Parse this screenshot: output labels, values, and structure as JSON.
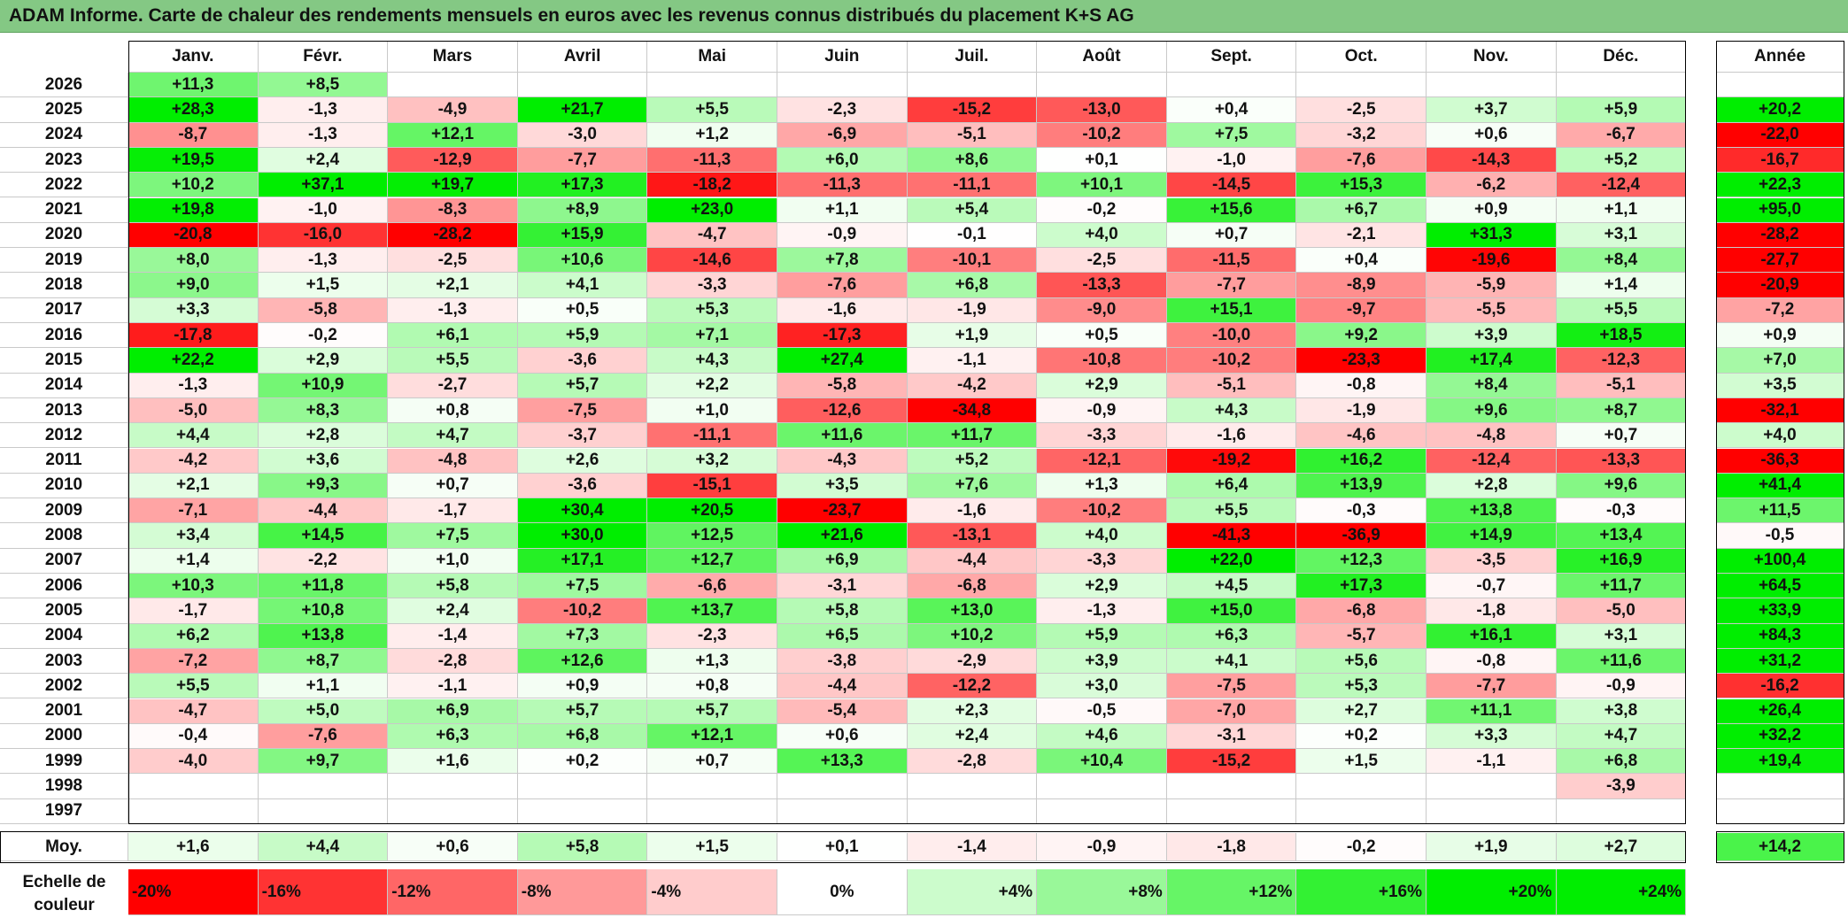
{
  "title": "ADAM Informe. Carte de chaleur des rendements mensuels en euros avec les revenus connus distribués du placement K+S AG",
  "chart_data": {
    "type": "heatmap",
    "title": "ADAM Informe. Carte de chaleur des rendements mensuels en euros avec les revenus connus distribués du placement K+S AG",
    "months": [
      "Janv.",
      "Févr.",
      "Mars",
      "Avril",
      "Mai",
      "Juin",
      "Juil.",
      "Août",
      "Sept.",
      "Oct.",
      "Nov.",
      "Déc."
    ],
    "annual_label": "Année",
    "rows": [
      {
        "year": "2026",
        "values": [
          "+11,3",
          "+8,5",
          "",
          "",
          "",
          "",
          "",
          "",
          "",
          "",
          "",
          ""
        ],
        "annual": ""
      },
      {
        "year": "2025",
        "values": [
          "+28,3",
          "-1,3",
          "-4,9",
          "+21,7",
          "+5,5",
          "-2,3",
          "-15,2",
          "-13,0",
          "+0,4",
          "-2,5",
          "+3,7",
          "+5,9"
        ],
        "annual": "+20,2"
      },
      {
        "year": "2024",
        "values": [
          "-8,7",
          "-1,3",
          "+12,1",
          "-3,0",
          "+1,2",
          "-6,9",
          "-5,1",
          "-10,2",
          "+7,5",
          "-3,2",
          "+0,6",
          "-6,7"
        ],
        "annual": "-22,0"
      },
      {
        "year": "2023",
        "values": [
          "+19,5",
          "+2,4",
          "-12,9",
          "-7,7",
          "-11,3",
          "+6,0",
          "+8,6",
          "+0,1",
          "-1,0",
          "-7,6",
          "-14,3",
          "+5,2"
        ],
        "annual": "-16,7"
      },
      {
        "year": "2022",
        "values": [
          "+10,2",
          "+37,1",
          "+19,7",
          "+17,3",
          "-18,2",
          "-11,3",
          "-11,1",
          "+10,1",
          "-14,5",
          "+15,3",
          "-6,2",
          "-12,4"
        ],
        "annual": "+22,3"
      },
      {
        "year": "2021",
        "values": [
          "+19,8",
          "-1,0",
          "-8,3",
          "+8,9",
          "+23,0",
          "+1,1",
          "+5,4",
          "-0,2",
          "+15,6",
          "+6,7",
          "+0,9",
          "+1,1"
        ],
        "annual": "+95,0"
      },
      {
        "year": "2020",
        "values": [
          "-20,8",
          "-16,0",
          "-28,2",
          "+15,9",
          "-4,7",
          "-0,9",
          "-0,1",
          "+4,0",
          "+0,7",
          "-2,1",
          "+31,3",
          "+3,1"
        ],
        "annual": "-28,2"
      },
      {
        "year": "2019",
        "values": [
          "+8,0",
          "-1,3",
          "-2,5",
          "+10,6",
          "-14,6",
          "+7,8",
          "-10,1",
          "-2,5",
          "-11,5",
          "+0,4",
          "-19,6",
          "+8,4"
        ],
        "annual": "-27,7"
      },
      {
        "year": "2018",
        "values": [
          "+9,0",
          "+1,5",
          "+2,1",
          "+4,1",
          "-3,3",
          "-7,6",
          "+6,8",
          "-13,3",
          "-7,7",
          "-8,9",
          "-5,9",
          "+1,4"
        ],
        "annual": "-20,9"
      },
      {
        "year": "2017",
        "values": [
          "+3,3",
          "-5,8",
          "-1,3",
          "+0,5",
          "+5,3",
          "-1,6",
          "-1,9",
          "-9,0",
          "+15,1",
          "-9,7",
          "-5,5",
          "+5,5"
        ],
        "annual": "-7,2"
      },
      {
        "year": "2016",
        "values": [
          "-17,8",
          "-0,2",
          "+6,1",
          "+5,9",
          "+7,1",
          "-17,3",
          "+1,9",
          "+0,5",
          "-10,0",
          "+9,2",
          "+3,9",
          "+18,5"
        ],
        "annual": "+0,9"
      },
      {
        "year": "2015",
        "values": [
          "+22,2",
          "+2,9",
          "+5,5",
          "-3,6",
          "+4,3",
          "+27,4",
          "-1,1",
          "-10,8",
          "-10,2",
          "-23,3",
          "+17,4",
          "-12,3"
        ],
        "annual": "+7,0"
      },
      {
        "year": "2014",
        "values": [
          "-1,3",
          "+10,9",
          "-2,7",
          "+5,7",
          "+2,2",
          "-5,8",
          "-4,2",
          "+2,9",
          "-5,1",
          "-0,8",
          "+8,4",
          "-5,1"
        ],
        "annual": "+3,5"
      },
      {
        "year": "2013",
        "values": [
          "-5,0",
          "+8,3",
          "+0,8",
          "-7,5",
          "+1,0",
          "-12,6",
          "-34,8",
          "-0,9",
          "+4,3",
          "-1,9",
          "+9,6",
          "+8,7"
        ],
        "annual": "-32,1"
      },
      {
        "year": "2012",
        "values": [
          "+4,4",
          "+2,8",
          "+4,7",
          "-3,7",
          "-11,1",
          "+11,6",
          "+11,7",
          "-3,3",
          "-1,6",
          "-4,6",
          "-4,8",
          "+0,7"
        ],
        "annual": "+4,0"
      },
      {
        "year": "2011",
        "values": [
          "-4,2",
          "+3,6",
          "-4,8",
          "+2,6",
          "+3,2",
          "-4,3",
          "+5,2",
          "-12,1",
          "-19,2",
          "+16,2",
          "-12,4",
          "-13,3"
        ],
        "annual": "-36,3"
      },
      {
        "year": "2010",
        "values": [
          "+2,1",
          "+9,3",
          "+0,7",
          "-3,6",
          "-15,1",
          "+3,5",
          "+7,6",
          "+1,3",
          "+6,4",
          "+13,9",
          "+2,8",
          "+9,6"
        ],
        "annual": "+41,4"
      },
      {
        "year": "2009",
        "values": [
          "-7,1",
          "-4,4",
          "-1,7",
          "+30,4",
          "+20,5",
          "-23,7",
          "-1,6",
          "-10,2",
          "+5,5",
          "-0,3",
          "+13,8",
          "-0,3"
        ],
        "annual": "+11,5"
      },
      {
        "year": "2008",
        "values": [
          "+3,4",
          "+14,5",
          "+7,5",
          "+30,0",
          "+12,5",
          "+21,6",
          "-13,1",
          "+4,0",
          "-41,3",
          "-36,9",
          "+14,9",
          "+13,4"
        ],
        "annual": "-0,5"
      },
      {
        "year": "2007",
        "values": [
          "+1,4",
          "-2,2",
          "+1,0",
          "+17,1",
          "+12,7",
          "+6,9",
          "-4,4",
          "-3,3",
          "+22,0",
          "+12,3",
          "-3,5",
          "+16,9"
        ],
        "annual": "+100,4"
      },
      {
        "year": "2006",
        "values": [
          "+10,3",
          "+11,8",
          "+5,8",
          "+7,5",
          "-6,6",
          "-3,1",
          "-6,8",
          "+2,9",
          "+4,5",
          "+17,3",
          "-0,7",
          "+11,7"
        ],
        "annual": "+64,5"
      },
      {
        "year": "2005",
        "values": [
          "-1,7",
          "+10,8",
          "+2,4",
          "-10,2",
          "+13,7",
          "+5,8",
          "+13,0",
          "-1,3",
          "+15,0",
          "-6,8",
          "-1,8",
          "-5,0"
        ],
        "annual": "+33,9"
      },
      {
        "year": "2004",
        "values": [
          "+6,2",
          "+13,8",
          "-1,4",
          "+7,3",
          "-2,3",
          "+6,5",
          "+10,2",
          "+5,9",
          "+6,3",
          "-5,7",
          "+16,1",
          "+3,1"
        ],
        "annual": "+84,3"
      },
      {
        "year": "2003",
        "values": [
          "-7,2",
          "+8,7",
          "-2,8",
          "+12,6",
          "+1,3",
          "-3,8",
          "-2,9",
          "+3,9",
          "+4,1",
          "+5,6",
          "-0,8",
          "+11,6"
        ],
        "annual": "+31,2"
      },
      {
        "year": "2002",
        "values": [
          "+5,5",
          "+1,1",
          "-1,1",
          "+0,9",
          "+0,8",
          "-4,4",
          "-12,2",
          "+3,0",
          "-7,5",
          "+5,3",
          "-7,7",
          "-0,9"
        ],
        "annual": "-16,2"
      },
      {
        "year": "2001",
        "values": [
          "-4,7",
          "+5,0",
          "+6,9",
          "+5,7",
          "+5,7",
          "-5,4",
          "+2,3",
          "-0,5",
          "-7,0",
          "+2,7",
          "+11,1",
          "+3,8"
        ],
        "annual": "+26,4"
      },
      {
        "year": "2000",
        "values": [
          "-0,4",
          "-7,6",
          "+6,3",
          "+6,8",
          "+12,1",
          "+0,6",
          "+2,4",
          "+4,6",
          "-3,1",
          "+0,2",
          "+3,3",
          "+4,7"
        ],
        "annual": "+32,2"
      },
      {
        "year": "1999",
        "values": [
          "-4,0",
          "+9,7",
          "+1,6",
          "+0,2",
          "+0,7",
          "+13,3",
          "-2,8",
          "+10,4",
          "-15,2",
          "+1,5",
          "-1,1",
          "+6,8"
        ],
        "annual": "+19,4"
      },
      {
        "year": "1998",
        "values": [
          "",
          "",
          "",
          "",
          "",
          "",
          "",
          "",
          "",
          "",
          "",
          "-3,9"
        ],
        "annual": ""
      },
      {
        "year": "1997",
        "values": [
          "",
          "",
          "",
          "",
          "",
          "",
          "",
          "",
          "",
          "",
          "",
          ""
        ],
        "annual": ""
      }
    ],
    "average": {
      "label": "Moy.",
      "values": [
        "+1,6",
        "+4,4",
        "+0,6",
        "+5,8",
        "+1,5",
        "+0,1",
        "-1,4",
        "-0,9",
        "-1,8",
        "-0,2",
        "+1,9",
        "+2,7"
      ],
      "annual": "+14,2"
    },
    "color_scale": {
      "label_line1": "Echelle de",
      "label_line2": "couleur",
      "steps": [
        "-20%",
        "-16%",
        "-12%",
        "-8%",
        "-4%",
        "0%",
        "+4%",
        "+8%",
        "+12%",
        "+16%",
        "+20%",
        "+24%"
      ],
      "negative_color": "#ff0000",
      "neutral_color": "#ffffff",
      "positive_color": "#00ee00"
    }
  }
}
